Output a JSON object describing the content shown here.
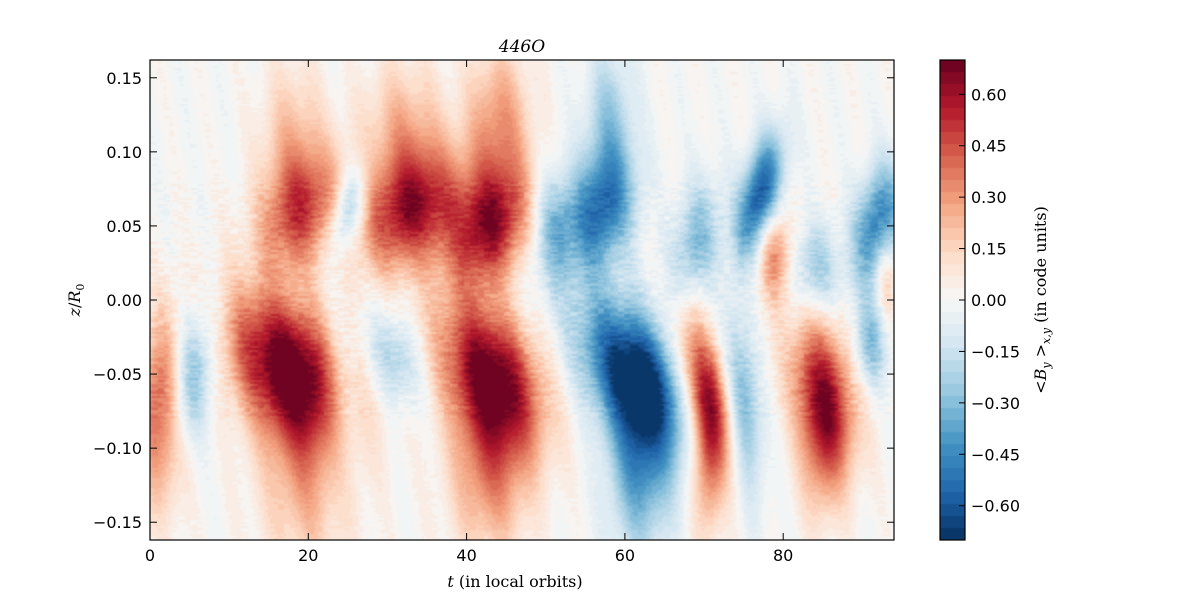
{
  "chart_data": {
    "type": "heatmap",
    "title": "446O",
    "xlabel": "t (in local orbits)",
    "ylabel": "z/R0",
    "colorbar_label": "<By>x,y (in code units)",
    "xlim": [
      0,
      94
    ],
    "ylim": [
      -0.162,
      0.162
    ],
    "clim": [
      -0.7,
      0.7
    ],
    "colormap": "RdBu_r",
    "x_ticks": [
      0,
      20,
      40,
      60,
      80
    ],
    "x_tick_labels": [
      "0",
      "20",
      "40",
      "60",
      "80"
    ],
    "y_ticks": [
      0.15,
      0.1,
      0.05,
      0.0,
      -0.05,
      -0.1,
      -0.15
    ],
    "y_tick_labels": [
      "0.15",
      "0.10",
      "0.05",
      "0.00",
      "−0.05",
      "−0.10",
      "−0.15"
    ],
    "colorbar_ticks": [
      0.6,
      0.45,
      0.3,
      0.15,
      0.0,
      -0.15,
      -0.3,
      -0.45,
      -0.6
    ],
    "colorbar_tick_labels": [
      "0.60",
      "0.45",
      "0.30",
      "0.15",
      "0.00",
      "−0.15",
      "−0.30",
      "−0.45",
      "−0.60"
    ],
    "features": [
      {
        "t_center": 1.5,
        "z_center": -0.075,
        "t_width": 3.0,
        "z_width": 0.06,
        "value": 0.5,
        "drift": 0.0
      },
      {
        "t_center": 5.0,
        "z_center": -0.055,
        "t_width": 3.0,
        "z_width": 0.05,
        "value": -0.35,
        "drift": -1.5
      },
      {
        "t_center": 17.0,
        "z_center": -0.045,
        "t_width": 7.0,
        "z_width": 0.05,
        "value": 0.65,
        "drift": 3.0
      },
      {
        "t_center": 20.0,
        "z_center": -0.1,
        "t_width": 6.0,
        "z_width": 0.08,
        "value": 0.3,
        "drift": 0.0
      },
      {
        "t_center": 19.0,
        "z_center": 0.06,
        "t_width": 5.0,
        "z_width": 0.04,
        "value": 0.45,
        "drift": -1.5
      },
      {
        "t_center": 18.0,
        "z_center": 0.11,
        "t_width": 4.0,
        "z_width": 0.05,
        "value": 0.2,
        "drift": 0.0
      },
      {
        "t_center": 25.0,
        "z_center": 0.06,
        "t_width": 2.0,
        "z_width": 0.03,
        "value": -0.35,
        "drift": -1.0
      },
      {
        "t_center": 24.0,
        "z_center": -0.07,
        "t_width": 3.0,
        "z_width": 0.06,
        "value": -0.2,
        "drift": 0.0
      },
      {
        "t_center": 33.0,
        "z_center": 0.06,
        "t_width": 6.0,
        "z_width": 0.04,
        "value": 0.55,
        "drift": -2.0
      },
      {
        "t_center": 32.0,
        "z_center": 0.11,
        "t_width": 5.0,
        "z_width": 0.05,
        "value": 0.25,
        "drift": 0.0
      },
      {
        "t_center": 31.0,
        "z_center": -0.04,
        "t_width": 3.0,
        "z_width": 0.03,
        "value": -0.25,
        "drift": 1.0
      },
      {
        "t_center": 43.0,
        "z_center": -0.05,
        "t_width": 6.0,
        "z_width": 0.05,
        "value": 0.65,
        "drift": 2.5
      },
      {
        "t_center": 43.0,
        "z_center": -0.11,
        "t_width": 5.0,
        "z_width": 0.06,
        "value": 0.35,
        "drift": 0.0
      },
      {
        "t_center": 43.0,
        "z_center": 0.05,
        "t_width": 5.0,
        "z_width": 0.04,
        "value": 0.6,
        "drift": -1.5
      },
      {
        "t_center": 44.0,
        "z_center": 0.12,
        "t_width": 4.0,
        "z_width": 0.05,
        "value": 0.3,
        "drift": 0.0
      },
      {
        "t_center": 51.0,
        "z_center": 0.05,
        "t_width": 3.0,
        "z_width": 0.04,
        "value": -0.3,
        "drift": 0.0
      },
      {
        "t_center": 57.0,
        "z_center": 0.06,
        "t_width": 4.0,
        "z_width": 0.04,
        "value": -0.5,
        "drift": -1.0
      },
      {
        "t_center": 61.0,
        "z_center": -0.05,
        "t_width": 6.0,
        "z_width": 0.05,
        "value": -0.7,
        "drift": 3.0
      },
      {
        "t_center": 62.0,
        "z_center": -0.11,
        "t_width": 4.0,
        "z_width": 0.06,
        "value": -0.4,
        "drift": 0.0
      },
      {
        "t_center": 58.0,
        "z_center": 0.12,
        "t_width": 3.0,
        "z_width": 0.05,
        "value": -0.25,
        "drift": 0.0
      },
      {
        "t_center": 70.0,
        "z_center": -0.06,
        "t_width": 3.0,
        "z_width": 0.05,
        "value": 0.55,
        "drift": 2.0
      },
      {
        "t_center": 70.5,
        "z_center": -0.11,
        "t_width": 2.0,
        "z_width": 0.05,
        "value": 0.35,
        "drift": 0.0
      },
      {
        "t_center": 69.0,
        "z_center": 0.04,
        "t_width": 3.0,
        "z_width": 0.04,
        "value": -0.3,
        "drift": -1.0
      },
      {
        "t_center": 75.0,
        "z_center": -0.07,
        "t_width": 2.0,
        "z_width": 0.06,
        "value": -0.35,
        "drift": 1.0
      },
      {
        "t_center": 77.0,
        "z_center": 0.07,
        "t_width": 2.5,
        "z_width": 0.04,
        "value": -0.6,
        "drift": -1.5
      },
      {
        "t_center": 79.0,
        "z_center": 0.03,
        "t_width": 2.0,
        "z_width": 0.03,
        "value": 0.35,
        "drift": 0.0
      },
      {
        "t_center": 85.0,
        "z_center": -0.06,
        "t_width": 4.0,
        "z_width": 0.05,
        "value": 0.5,
        "drift": 1.5
      },
      {
        "t_center": 85.0,
        "z_center": -0.1,
        "t_width": 3.0,
        "z_width": 0.05,
        "value": 0.3,
        "drift": 0.0
      },
      {
        "t_center": 84.0,
        "z_center": 0.02,
        "t_width": 3.0,
        "z_width": 0.03,
        "value": -0.25,
        "drift": 0.0
      },
      {
        "t_center": 92.0,
        "z_center": 0.05,
        "t_width": 3.0,
        "z_width": 0.04,
        "value": -0.5,
        "drift": -1.0
      },
      {
        "t_center": 91.0,
        "z_center": -0.03,
        "t_width": 2.0,
        "z_width": 0.03,
        "value": -0.3,
        "drift": 0.0
      },
      {
        "t_center": 93.0,
        "z_center": 0.02,
        "t_width": 1.5,
        "z_width": 0.03,
        "value": 0.25,
        "drift": 0.0
      }
    ]
  }
}
